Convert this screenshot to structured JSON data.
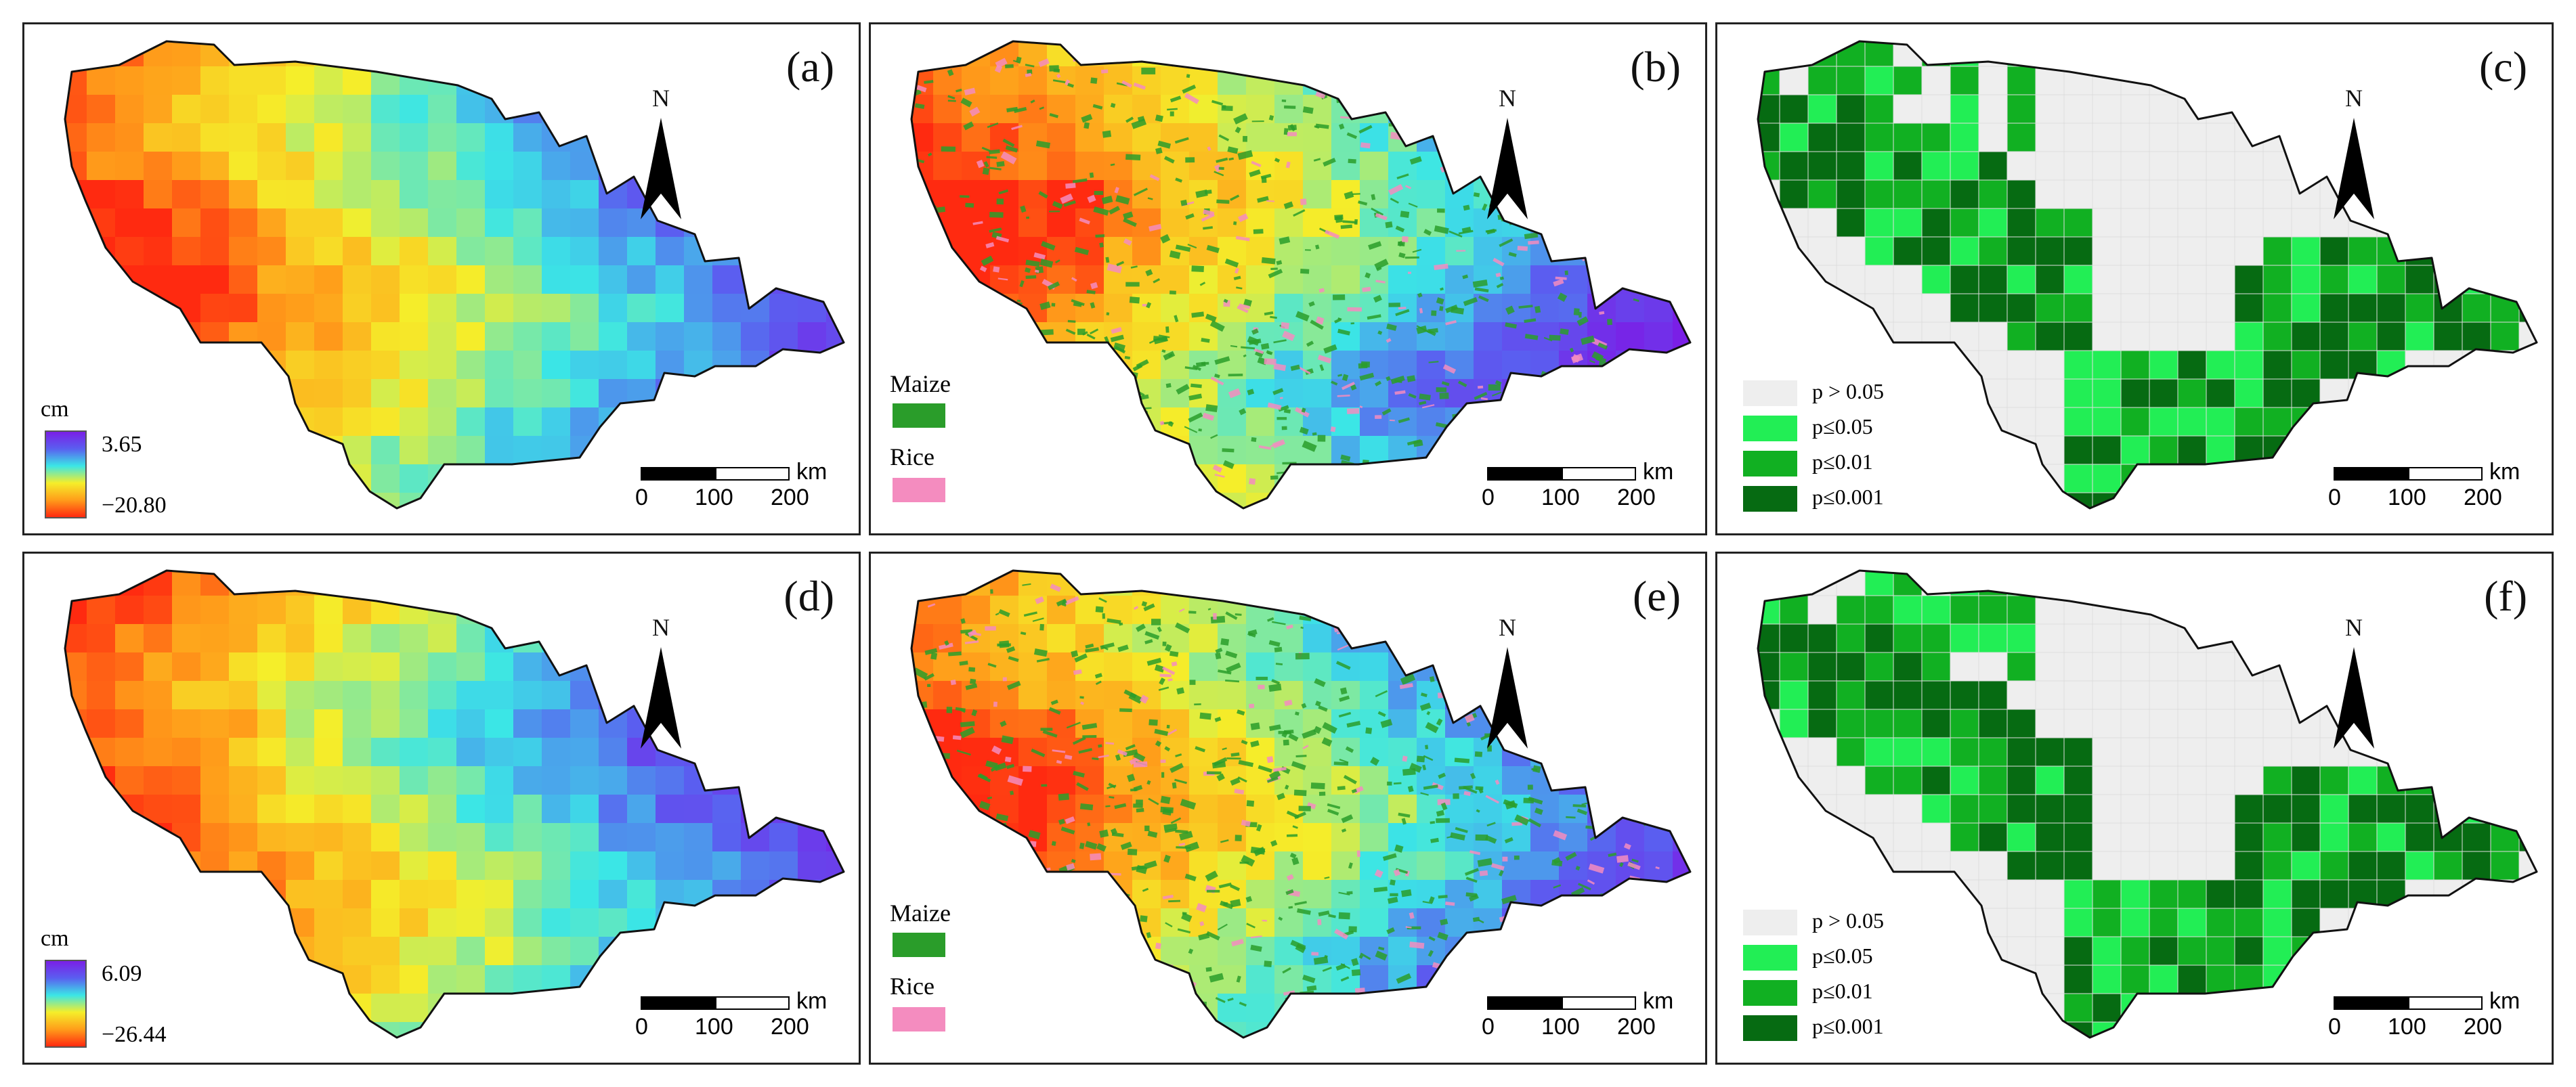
{
  "figure": {
    "panels": [
      {
        "id": "a",
        "label": "(a)",
        "kind": "cont",
        "legend": {
          "unit": "cm",
          "max": "3.65",
          "min": "−20.80"
        }
      },
      {
        "id": "b",
        "label": "(b)",
        "kind": "crop",
        "legend": {
          "maize": "Maize",
          "rice": "Rice"
        }
      },
      {
        "id": "c",
        "label": "(c)",
        "kind": "sig",
        "legend": {
          "p1": "p > 0.05",
          "p2": "p≤0.05",
          "p3": "p≤0.01",
          "p4": "p≤0.001"
        }
      },
      {
        "id": "d",
        "label": "(d)",
        "kind": "cont",
        "legend": {
          "unit": "cm",
          "max": "6.09",
          "min": "−26.44"
        }
      },
      {
        "id": "e",
        "label": "(e)",
        "kind": "crop",
        "legend": {
          "maize": "Maize",
          "rice": "Rice"
        }
      },
      {
        "id": "f",
        "label": "(f)",
        "kind": "sig",
        "legend": {
          "p1": "p > 0.05",
          "p2": "p≤0.05",
          "p3": "p≤0.01",
          "p4": "p≤0.001"
        }
      }
    ],
    "north_label": "N",
    "scale": {
      "unit": "km",
      "ticks": [
        "0",
        "100",
        "200"
      ]
    },
    "colors": {
      "maize": "#2a9d2a",
      "rice": "#f48cbf",
      "sig_ns": "#eeeeee",
      "sig_05": "#22ee55",
      "sig_01": "#11b022",
      "sig_001": "#066b12",
      "ramp": [
        "#ff2a10",
        "#ff9d1a",
        "#f5ee2a",
        "#3be6e6",
        "#5a5ff0",
        "#7a1fe6"
      ]
    }
  }
}
